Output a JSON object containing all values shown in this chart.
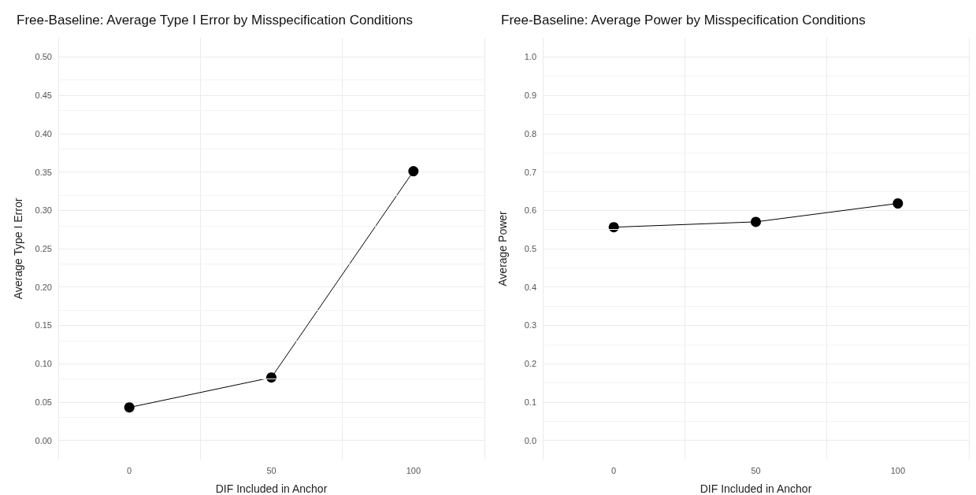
{
  "chart_data": [
    {
      "type": "line",
      "title": "Free-Baseline: Average Type I Error by Misspecification Conditions",
      "xlabel": "DIF Included in Anchor",
      "ylabel": "Average Type I Error",
      "categories": [
        "0",
        "50",
        "100"
      ],
      "values": [
        0.043,
        0.082,
        0.351
      ],
      "color": "#000000",
      "ylim": [
        -0.025,
        0.525
      ],
      "yticks": [
        {
          "value": 0,
          "label": "0.00"
        },
        {
          "value": 0.05,
          "label": "0.05"
        },
        {
          "value": 0.1,
          "label": "0.10"
        },
        {
          "value": 0.15,
          "label": "0.15"
        },
        {
          "value": 0.2,
          "label": "0.20"
        },
        {
          "value": 0.25,
          "label": "0.25"
        },
        {
          "value": 0.3,
          "label": "0.30"
        },
        {
          "value": 0.35,
          "label": "0.35"
        },
        {
          "value": 0.4,
          "label": "0.40"
        },
        {
          "value": 0.45,
          "label": "0.45"
        },
        {
          "value": 0.5,
          "label": "0.50"
        }
      ],
      "grid": true,
      "marker": "circle"
    },
    {
      "type": "line",
      "title": "Free-Baseline: Average Power by Misspecification Conditions",
      "xlabel": "DIF Included in Anchor",
      "ylabel": "Average Power",
      "categories": [
        "0",
        "50",
        "100"
      ],
      "values": [
        0.556,
        0.57,
        0.618
      ],
      "color": "#000000",
      "ylim": [
        -0.05,
        1.05
      ],
      "yticks": [
        {
          "value": 0,
          "label": "0.0"
        },
        {
          "value": 0.1,
          "label": "0.1"
        },
        {
          "value": 0.2,
          "label": "0.2"
        },
        {
          "value": 0.3,
          "label": "0.3"
        },
        {
          "value": 0.4,
          "label": "0.4"
        },
        {
          "value": 0.5,
          "label": "0.5"
        },
        {
          "value": 0.6,
          "label": "0.6"
        },
        {
          "value": 0.7,
          "label": "0.7"
        },
        {
          "value": 0.8,
          "label": "0.8"
        },
        {
          "value": 0.9,
          "label": "0.9"
        },
        {
          "value": 1,
          "label": "1.0"
        }
      ],
      "grid": true,
      "marker": "circle"
    }
  ]
}
